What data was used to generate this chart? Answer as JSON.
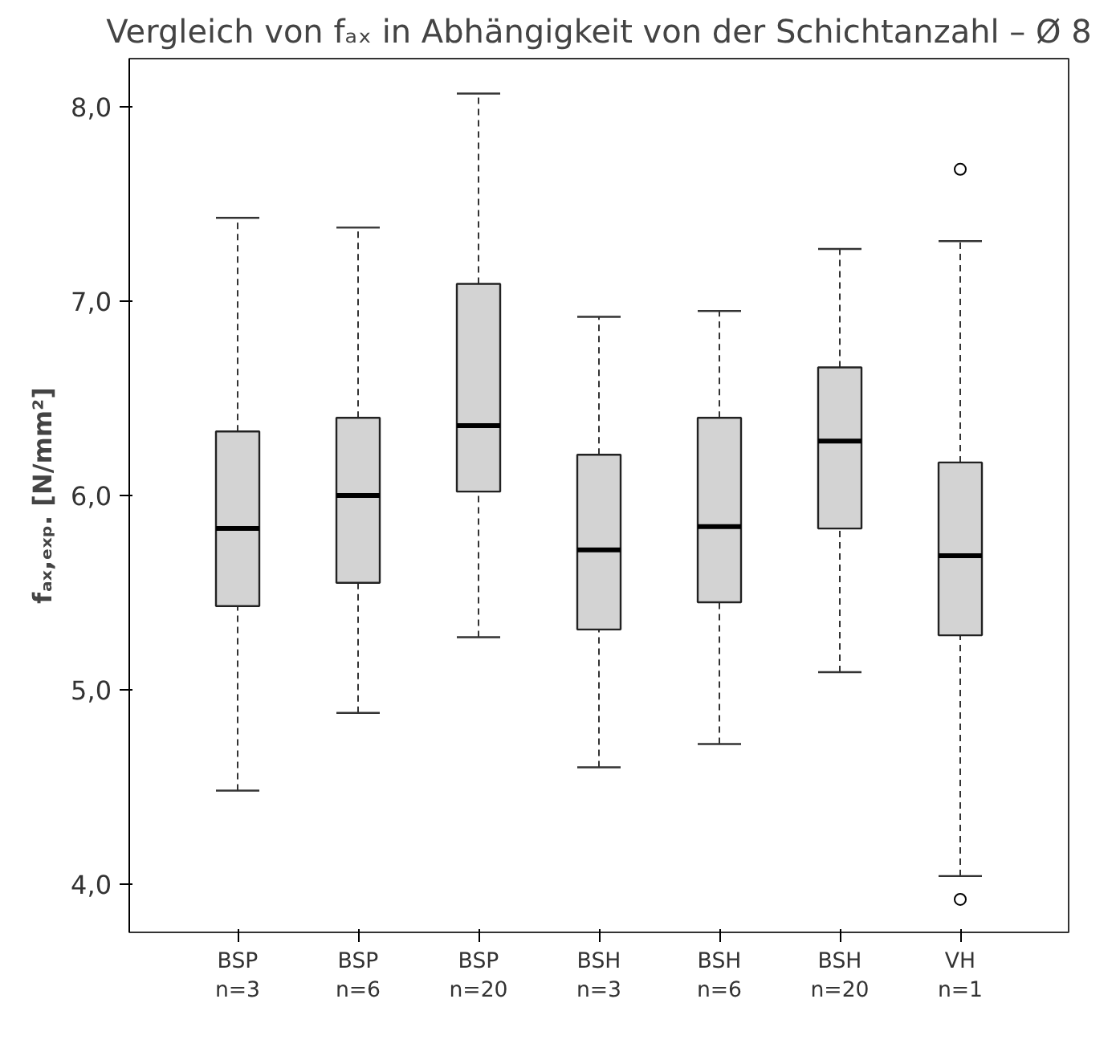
{
  "chart_data": {
    "type": "box",
    "title": "Vergleich von fₐₓ in Abhängigkeit von der Schichtanzahl – Ø 8",
    "ylabel": "fₐₓ,ₑₓₚ. [N/mm²]",
    "categories": [
      "BSP\nn=3",
      "BSP\nn=6",
      "BSP\nn=20",
      "BSH\nn=3",
      "BSH\nn=6",
      "BSH\nn=20",
      "VH\nn=1"
    ],
    "boxes": [
      {
        "low": 4.48,
        "q1": 5.43,
        "median": 5.83,
        "q3": 6.33,
        "high": 7.43
      },
      {
        "low": 4.88,
        "q1": 5.55,
        "median": 6.0,
        "q3": 6.4,
        "high": 7.38
      },
      {
        "low": 5.27,
        "q1": 6.02,
        "median": 6.36,
        "q3": 7.09,
        "high": 8.07
      },
      {
        "low": 4.6,
        "q1": 5.31,
        "median": 5.72,
        "q3": 6.21,
        "high": 6.92
      },
      {
        "low": 4.72,
        "q1": 5.45,
        "median": 5.84,
        "q3": 6.4,
        "high": 6.95
      },
      {
        "low": 5.09,
        "q1": 5.83,
        "median": 6.28,
        "q3": 6.66,
        "high": 7.27
      },
      {
        "low": 4.04,
        "q1": 5.28,
        "median": 5.69,
        "q3": 6.17,
        "high": 7.31,
        "outliers": [
          7.68,
          3.92
        ]
      }
    ],
    "color": "#d3d3d3",
    "ylim": [
      3.75,
      8.25
    ],
    "yticks": [
      {
        "value": 4,
        "label": "4,0"
      },
      {
        "value": 5,
        "label": "5,0"
      },
      {
        "value": 6,
        "label": "6,0"
      },
      {
        "value": 7,
        "label": "7,0"
      },
      {
        "value": 8,
        "label": "8,0"
      }
    ],
    "grid": false
  }
}
